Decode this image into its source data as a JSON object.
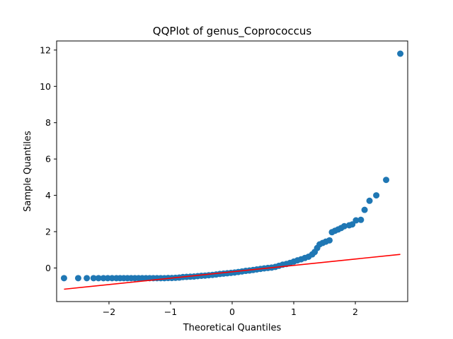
{
  "chart_data": {
    "type": "scatter",
    "title": "QQPlot of genus_Coprococcus",
    "xlabel": "Theoretical Quantiles",
    "ylabel": "Sample Quantiles",
    "xlim": [
      -2.85,
      2.85
    ],
    "ylim": [
      -1.85,
      12.5
    ],
    "x_ticks": [
      -2,
      -1,
      0,
      1,
      2
    ],
    "y_ticks": [
      0,
      2,
      4,
      6,
      8,
      10,
      12
    ],
    "grid": false,
    "legend": "none",
    "series": [
      {
        "kind": "points",
        "color": "#1f77b4",
        "points": [
          [
            -2.73,
            -0.56
          ],
          [
            -2.5,
            -0.56
          ],
          [
            -2.36,
            -0.56
          ],
          [
            -2.25,
            -0.56
          ],
          [
            -2.17,
            -0.56
          ],
          [
            -2.09,
            -0.56
          ],
          [
            -2.02,
            -0.56
          ],
          [
            -1.95,
            -0.56
          ],
          [
            -1.88,
            -0.56
          ],
          [
            -1.82,
            -0.56
          ],
          [
            -1.76,
            -0.56
          ],
          [
            -1.7,
            -0.56
          ],
          [
            -1.64,
            -0.56
          ],
          [
            -1.58,
            -0.56
          ],
          [
            -1.52,
            -0.56
          ],
          [
            -1.46,
            -0.56
          ],
          [
            -1.4,
            -0.56
          ],
          [
            -1.34,
            -0.56
          ],
          [
            -1.28,
            -0.56
          ],
          [
            -1.22,
            -0.56
          ],
          [
            -1.16,
            -0.56
          ],
          [
            -1.1,
            -0.56
          ],
          [
            -1.04,
            -0.55
          ],
          [
            -0.98,
            -0.55
          ],
          [
            -0.92,
            -0.54
          ],
          [
            -0.86,
            -0.53
          ],
          [
            -0.8,
            -0.5
          ],
          [
            -0.74,
            -0.49
          ],
          [
            -0.68,
            -0.48
          ],
          [
            -0.62,
            -0.47
          ],
          [
            -0.56,
            -0.45
          ],
          [
            -0.5,
            -0.43
          ],
          [
            -0.44,
            -0.42
          ],
          [
            -0.38,
            -0.4
          ],
          [
            -0.32,
            -0.38
          ],
          [
            -0.26,
            -0.36
          ],
          [
            -0.2,
            -0.33
          ],
          [
            -0.14,
            -0.31
          ],
          [
            -0.08,
            -0.29
          ],
          [
            -0.02,
            -0.27
          ],
          [
            0.04,
            -0.25
          ],
          [
            0.1,
            -0.22
          ],
          [
            0.16,
            -0.19
          ],
          [
            0.22,
            -0.16
          ],
          [
            0.28,
            -0.14
          ],
          [
            0.34,
            -0.11
          ],
          [
            0.4,
            -0.08
          ],
          [
            0.46,
            -0.05
          ],
          [
            0.52,
            -0.02
          ],
          [
            0.58,
            0.0
          ],
          [
            0.64,
            0.02
          ],
          [
            0.7,
            0.06
          ],
          [
            0.76,
            0.12
          ],
          [
            0.82,
            0.18
          ],
          [
            0.88,
            0.22
          ],
          [
            0.94,
            0.28
          ],
          [
            1.0,
            0.35
          ],
          [
            1.06,
            0.42
          ],
          [
            1.12,
            0.48
          ],
          [
            1.18,
            0.55
          ],
          [
            1.24,
            0.62
          ],
          [
            1.3,
            0.75
          ],
          [
            1.34,
            0.88
          ],
          [
            1.38,
            1.1
          ],
          [
            1.42,
            1.3
          ],
          [
            1.47,
            1.38
          ],
          [
            1.52,
            1.45
          ],
          [
            1.58,
            1.52
          ],
          [
            1.62,
            1.97
          ],
          [
            1.67,
            2.05
          ],
          [
            1.72,
            2.12
          ],
          [
            1.77,
            2.2
          ],
          [
            1.82,
            2.3
          ],
          [
            1.9,
            2.35
          ],
          [
            1.95,
            2.4
          ],
          [
            2.01,
            2.62
          ],
          [
            2.09,
            2.65
          ],
          [
            2.15,
            3.2
          ],
          [
            2.23,
            3.7
          ],
          [
            2.34,
            4.0
          ],
          [
            2.5,
            4.85
          ],
          [
            2.73,
            11.8
          ]
        ]
      },
      {
        "kind": "line",
        "color": "#ff0000",
        "points": [
          [
            -2.73,
            -1.17
          ],
          [
            2.73,
            0.75
          ]
        ]
      }
    ]
  }
}
